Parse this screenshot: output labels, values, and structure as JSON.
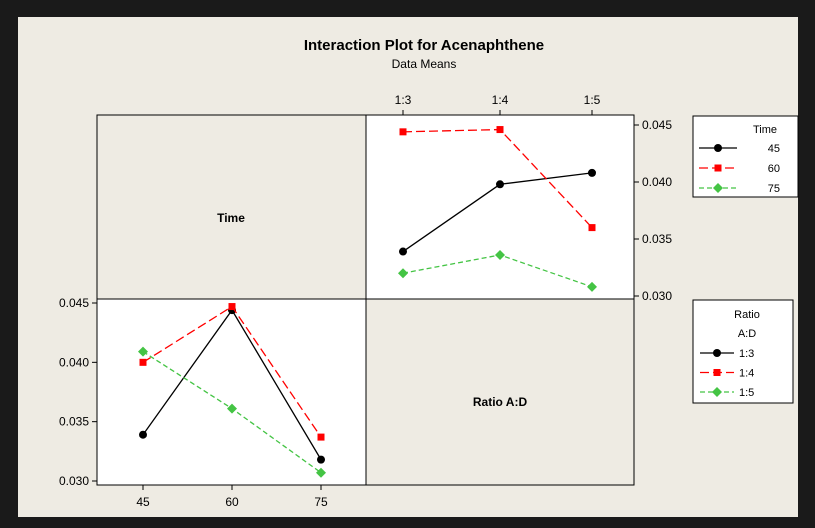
{
  "title": "Interaction Plot for Acenaphthene",
  "subtitle": "Data Means",
  "factor_labels": {
    "time": "Time",
    "ratio": "Ratio A:D"
  },
  "colors": {
    "series1": "#000000",
    "series2": "#ff0000",
    "series3": "#44c444",
    "plot_bg": "#ffffff",
    "frame_bg": "#eeebe3"
  },
  "chart_data": [
    {
      "type": "line",
      "panel": "top-right",
      "x_axis_position": "top",
      "y_axis_position": "right",
      "categories": [
        "1:3",
        "1:4",
        "1:5"
      ],
      "ylim": [
        0.03,
        0.045
      ],
      "yticks": [
        "0.030",
        "0.035",
        "0.040",
        "0.045"
      ],
      "legend": {
        "title": "Time",
        "placement": "right"
      },
      "series": [
        {
          "name": "45",
          "marker": "circle",
          "line": "solid",
          "values": [
            0.0339,
            0.0398,
            0.0408
          ]
        },
        {
          "name": "60",
          "marker": "square",
          "line": "dashed",
          "values": [
            0.0444,
            0.0446,
            0.036
          ]
        },
        {
          "name": "75",
          "marker": "diamond",
          "line": "dashed",
          "values": [
            0.032,
            0.0336,
            0.0308
          ]
        }
      ]
    },
    {
      "type": "line",
      "panel": "bottom-left",
      "x_axis_position": "bottom",
      "y_axis_position": "left",
      "categories": [
        "45",
        "60",
        "75"
      ],
      "ylim": [
        0.03,
        0.045
      ],
      "yticks": [
        "0.030",
        "0.035",
        "0.040",
        "0.045"
      ],
      "legend": {
        "title": "Ratio\nA:D",
        "placement": "right"
      },
      "series": [
        {
          "name": "1:3",
          "marker": "circle",
          "line": "solid",
          "values": [
            0.0339,
            0.0444,
            0.0318
          ]
        },
        {
          "name": "1:4",
          "marker": "square",
          "line": "dashed",
          "values": [
            0.04,
            0.0447,
            0.0337
          ]
        },
        {
          "name": "1:5",
          "marker": "diamond",
          "line": "dashed",
          "values": [
            0.0409,
            0.0361,
            0.0307
          ]
        }
      ]
    }
  ],
  "legend_time": {
    "title": "Time",
    "items": [
      "45",
      "60",
      "75"
    ]
  },
  "legend_ratio": {
    "title_line1": "Ratio",
    "title_line2": "A:D",
    "items": [
      "1:3",
      "1:4",
      "1:5"
    ]
  }
}
